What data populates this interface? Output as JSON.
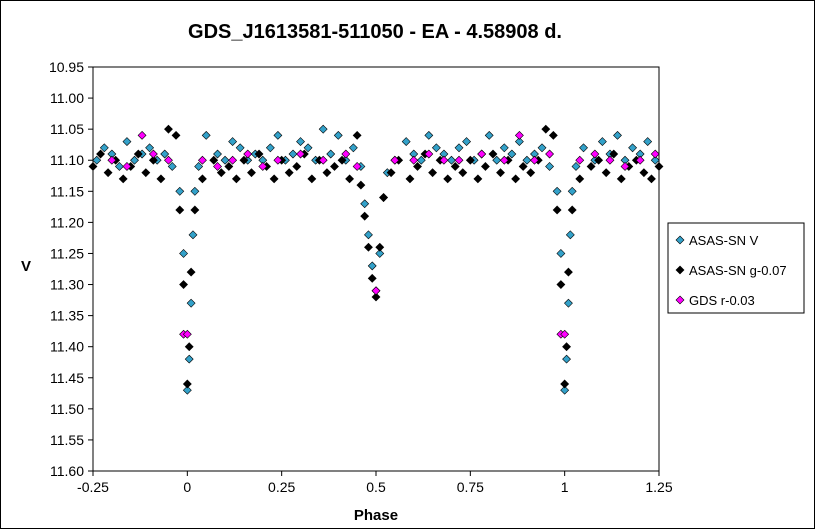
{
  "chart_data": {
    "type": "scatter",
    "title": "GDS_J1613581-511050  - EA - 4.58908 d.",
    "xlabel": "Phase",
    "ylabel": "V",
    "xlim": [
      -0.25,
      1.25
    ],
    "ylim": [
      11.6,
      10.95
    ],
    "y_inverted": true,
    "x_ticks": [
      -0.25,
      0,
      0.25,
      0.5,
      0.75,
      1,
      1.25
    ],
    "x_tick_labels": [
      "-0.25",
      "0",
      "0.25",
      "0.5",
      "0.75",
      "1",
      "1.25"
    ],
    "y_ticks": [
      10.95,
      11.0,
      11.05,
      11.1,
      11.15,
      11.2,
      11.25,
      11.3,
      11.35,
      11.4,
      11.45,
      11.5,
      11.55,
      11.6
    ],
    "y_tick_labels": [
      "10.95",
      "11.00",
      "11.05",
      "11.10",
      "11.15",
      "11.20",
      "11.25",
      "11.30",
      "11.35",
      "11.40",
      "11.45",
      "11.50",
      "11.55",
      "11.60"
    ],
    "grid": false,
    "legend_position": "right",
    "series": [
      {
        "name": "ASAS-SN V",
        "color": "#33a1c9",
        "x": [
          -0.24,
          -0.22,
          -0.2,
          -0.18,
          -0.16,
          -0.14,
          -0.12,
          -0.1,
          -0.08,
          -0.06,
          -0.04,
          -0.02,
          -0.01,
          0.0,
          0.005,
          0.01,
          0.015,
          0.02,
          0.03,
          0.05,
          0.08,
          0.1,
          0.12,
          0.14,
          0.16,
          0.18,
          0.2,
          0.22,
          0.24,
          0.26,
          0.28,
          0.3,
          0.32,
          0.34,
          0.36,
          0.38,
          0.4,
          0.42,
          0.44,
          0.46,
          0.47,
          0.48,
          0.49,
          0.5,
          0.51,
          0.52,
          0.53,
          0.55,
          0.58,
          0.6,
          0.62,
          0.64,
          0.66,
          0.68,
          0.7,
          0.72,
          0.74,
          0.76,
          0.78,
          0.8,
          0.82,
          0.84,
          0.86,
          0.88,
          0.9,
          0.92,
          0.94,
          0.96,
          0.98,
          0.99,
          1.0,
          1.005,
          1.01,
          1.015,
          1.02,
          1.03,
          1.05,
          1.08,
          1.1,
          1.12,
          1.14,
          1.16,
          1.18,
          1.2,
          1.22,
          1.24
        ],
        "y": [
          11.1,
          11.08,
          11.09,
          11.11,
          11.07,
          11.1,
          11.09,
          11.08,
          11.1,
          11.09,
          11.11,
          11.15,
          11.25,
          11.47,
          11.42,
          11.33,
          11.22,
          11.15,
          11.11,
          11.06,
          11.09,
          11.1,
          11.07,
          11.08,
          11.1,
          11.09,
          11.1,
          11.08,
          11.06,
          11.1,
          11.09,
          11.07,
          11.08,
          11.1,
          11.05,
          11.09,
          11.06,
          11.1,
          11.08,
          11.11,
          11.17,
          11.22,
          11.27,
          11.31,
          11.25,
          11.16,
          11.12,
          11.1,
          11.07,
          11.09,
          11.1,
          11.06,
          11.08,
          11.09,
          11.1,
          11.08,
          11.07,
          11.1,
          11.09,
          11.06,
          11.1,
          11.08,
          11.09,
          11.07,
          11.1,
          11.09,
          11.08,
          11.11,
          11.15,
          11.25,
          11.47,
          11.42,
          11.33,
          11.22,
          11.15,
          11.11,
          11.08,
          11.1,
          11.07,
          11.09,
          11.06,
          11.1,
          11.08,
          11.09,
          11.07,
          11.1
        ]
      },
      {
        "name": "ASAS-SN g-0.07",
        "color": "#000000",
        "x": [
          -0.25,
          -0.23,
          -0.21,
          -0.19,
          -0.17,
          -0.15,
          -0.13,
          -0.11,
          -0.09,
          -0.07,
          -0.05,
          -0.03,
          -0.02,
          -0.01,
          0.0,
          0.005,
          0.01,
          0.02,
          0.04,
          0.07,
          0.09,
          0.11,
          0.13,
          0.15,
          0.17,
          0.19,
          0.21,
          0.23,
          0.25,
          0.27,
          0.29,
          0.31,
          0.33,
          0.35,
          0.37,
          0.39,
          0.41,
          0.43,
          0.45,
          0.46,
          0.47,
          0.48,
          0.49,
          0.5,
          0.51,
          0.52,
          0.54,
          0.56,
          0.59,
          0.61,
          0.63,
          0.65,
          0.67,
          0.69,
          0.71,
          0.73,
          0.75,
          0.77,
          0.79,
          0.81,
          0.83,
          0.85,
          0.87,
          0.89,
          0.91,
          0.93,
          0.95,
          0.97,
          0.98,
          0.99,
          1.0,
          1.005,
          1.01,
          1.02,
          1.04,
          1.07,
          1.09,
          1.11,
          1.13,
          1.15,
          1.17,
          1.19,
          1.21,
          1.23,
          1.25
        ],
        "y": [
          11.11,
          11.09,
          11.12,
          11.1,
          11.13,
          11.11,
          11.09,
          11.12,
          11.1,
          11.13,
          11.05,
          11.06,
          11.18,
          11.3,
          11.46,
          11.4,
          11.28,
          11.18,
          11.13,
          11.1,
          11.12,
          11.11,
          11.13,
          11.1,
          11.12,
          11.09,
          11.11,
          11.13,
          11.1,
          11.12,
          11.11,
          11.09,
          11.13,
          11.1,
          11.12,
          11.11,
          11.1,
          11.13,
          11.06,
          11.14,
          11.19,
          11.24,
          11.29,
          11.32,
          11.24,
          11.16,
          11.12,
          11.1,
          11.13,
          11.11,
          11.09,
          11.12,
          11.1,
          11.13,
          11.11,
          11.12,
          11.1,
          11.13,
          11.11,
          11.09,
          11.12,
          11.1,
          11.13,
          11.11,
          11.12,
          11.1,
          11.05,
          11.06,
          11.18,
          11.3,
          11.46,
          11.4,
          11.28,
          11.18,
          11.13,
          11.11,
          11.1,
          11.12,
          11.09,
          11.13,
          11.11,
          11.1,
          11.12,
          11.13,
          11.11
        ]
      },
      {
        "name": "GDS r-0.03",
        "color": "#ff00ff",
        "x": [
          -0.2,
          -0.16,
          -0.12,
          -0.09,
          -0.05,
          -0.01,
          0.0,
          0.04,
          0.08,
          0.12,
          0.16,
          0.2,
          0.24,
          0.3,
          0.36,
          0.42,
          0.45,
          0.5,
          0.55,
          0.6,
          0.64,
          0.68,
          0.72,
          0.78,
          0.84,
          0.88,
          0.92,
          0.96,
          0.99,
          1.0,
          1.04,
          1.08,
          1.12,
          1.16,
          1.2,
          1.24
        ],
        "y": [
          11.1,
          11.11,
          11.06,
          11.09,
          11.1,
          11.38,
          11.38,
          11.1,
          11.11,
          11.1,
          11.09,
          11.11,
          11.1,
          11.09,
          11.1,
          11.09,
          11.11,
          11.31,
          11.1,
          11.1,
          11.09,
          11.1,
          11.1,
          11.09,
          11.1,
          11.06,
          11.1,
          11.09,
          11.38,
          11.38,
          11.1,
          11.09,
          11.1,
          11.11,
          11.1,
          11.09
        ]
      }
    ]
  }
}
